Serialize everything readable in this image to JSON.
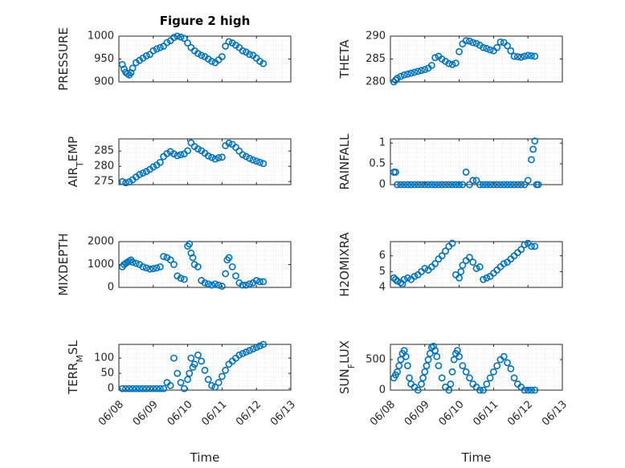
{
  "chart_data": [
    {
      "type": "scatter",
      "title": "Figure 2 high",
      "xlabel": "",
      "ylabel": "PRESSURE",
      "ylim": [
        900,
        1000
      ],
      "yticks": [
        900,
        950,
        1000
      ],
      "xlim": [
        0,
        5
      ],
      "xticks": [
        0,
        1,
        2,
        3,
        4,
        5
      ],
      "xticklabels": [],
      "grid": true,
      "x": [
        0.1,
        0.15,
        0.2,
        0.25,
        0.3,
        0.35,
        0.4,
        0.5,
        0.6,
        0.7,
        0.8,
        0.9,
        1.0,
        1.1,
        1.2,
        1.3,
        1.4,
        1.5,
        1.6,
        1.7,
        1.8,
        1.9,
        2.0,
        2.1,
        2.2,
        2.3,
        2.4,
        2.5,
        2.6,
        2.7,
        2.8,
        2.9,
        3.0,
        3.1,
        3.2,
        3.3,
        3.4,
        3.5,
        3.6,
        3.7,
        3.8,
        3.9,
        4.0,
        4.1,
        4.2
      ],
      "y": [
        938,
        928,
        921,
        918,
        915,
        920,
        930,
        942,
        947,
        952,
        957,
        960,
        968,
        972,
        975,
        978,
        986,
        990,
        997,
        1000,
        998,
        995,
        985,
        975,
        968,
        962,
        958,
        955,
        950,
        945,
        942,
        948,
        955,
        978,
        988,
        985,
        980,
        975,
        968,
        965,
        960,
        958,
        952,
        945,
        940
      ]
    },
    {
      "type": "scatter",
      "title": "",
      "xlabel": "",
      "ylabel": "THETA",
      "ylim": [
        280,
        290
      ],
      "yticks": [
        280,
        285,
        290
      ],
      "xlim": [
        0,
        5
      ],
      "xticks": [
        0,
        1,
        2,
        3,
        4,
        5
      ],
      "xticklabels": [],
      "grid": true,
      "x": [
        0.1,
        0.15,
        0.2,
        0.3,
        0.4,
        0.5,
        0.6,
        0.7,
        0.8,
        0.9,
        1.0,
        1.1,
        1.2,
        1.3,
        1.4,
        1.5,
        1.6,
        1.7,
        1.8,
        1.9,
        2.0,
        2.1,
        2.2,
        2.3,
        2.4,
        2.5,
        2.6,
        2.7,
        2.8,
        2.9,
        3.0,
        3.1,
        3.2,
        3.3,
        3.4,
        3.5,
        3.6,
        3.7,
        3.8,
        3.9,
        4.0,
        4.1,
        4.2
      ],
      "y": [
        280,
        280.4,
        280.8,
        281.2,
        281.5,
        281.7,
        281.9,
        282.1,
        282.3,
        282.5,
        282.7,
        283.0,
        283.6,
        285.3,
        285.6,
        285.0,
        284.5,
        284.0,
        283.8,
        284.1,
        286.6,
        288.3,
        289.0,
        288.9,
        288.6,
        288.4,
        288.0,
        287.5,
        287.3,
        287.0,
        286.8,
        287.5,
        288.7,
        288.6,
        287.9,
        286.8,
        285.6,
        285.5,
        285.4,
        285.6,
        285.8,
        285.7,
        285.6
      ]
    },
    {
      "type": "scatter",
      "title": "",
      "xlabel": "",
      "ylabel": "AIR_TEMP",
      "ylim": [
        274,
        289
      ],
      "yticks": [
        275,
        280,
        285
      ],
      "xlim": [
        0,
        5
      ],
      "xticks": [
        0,
        1,
        2,
        3,
        4,
        5
      ],
      "xticklabels": [],
      "grid": true,
      "x": [
        0.1,
        0.2,
        0.3,
        0.4,
        0.5,
        0.6,
        0.7,
        0.8,
        0.9,
        1.0,
        1.1,
        1.2,
        1.3,
        1.4,
        1.5,
        1.6,
        1.7,
        1.8,
        1.9,
        2.0,
        2.1,
        2.2,
        2.3,
        2.4,
        2.5,
        2.6,
        2.7,
        2.8,
        2.9,
        3.0,
        3.1,
        3.2,
        3.3,
        3.4,
        3.5,
        3.6,
        3.7,
        3.8,
        3.9,
        4.0,
        4.1,
        4.2
      ],
      "y": [
        275,
        274.6,
        274.9,
        275.6,
        276.5,
        277.3,
        277.8,
        278.3,
        279.0,
        279.8,
        280.4,
        281.3,
        283.2,
        284.2,
        284.8,
        284.1,
        283.5,
        283.8,
        284.1,
        285.1,
        287.7,
        286.5,
        285.7,
        285.1,
        284.3,
        283.4,
        282.9,
        282.4,
        282.8,
        283.0,
        286.8,
        287.6,
        287.2,
        286.2,
        285.0,
        283.8,
        283.2,
        282.6,
        282.1,
        281.7,
        281.3,
        280.9
      ]
    },
    {
      "type": "scatter",
      "title": "",
      "xlabel": "",
      "ylabel": "RAINFALL",
      "ylim": [
        0,
        1.1
      ],
      "yticks": [
        0,
        0.5,
        1
      ],
      "xlim": [
        0,
        5
      ],
      "xticks": [
        0,
        1,
        2,
        3,
        4,
        5
      ],
      "xticklabels": [],
      "grid": true,
      "x": [
        0.1,
        0.15,
        0.2,
        0.3,
        0.4,
        0.5,
        0.6,
        0.7,
        0.8,
        0.9,
        1.0,
        1.1,
        1.2,
        1.3,
        1.4,
        1.5,
        1.6,
        1.7,
        1.8,
        1.9,
        2.0,
        2.1,
        2.2,
        2.3,
        2.4,
        2.5,
        2.6,
        2.7,
        2.8,
        2.9,
        3.0,
        3.1,
        3.2,
        3.3,
        3.4,
        3.5,
        3.6,
        3.7,
        3.8,
        3.9,
        4.0,
        4.1,
        4.15,
        4.2,
        4.25,
        4.3
      ],
      "y": [
        0.3,
        0.3,
        0,
        0,
        0,
        0,
        0,
        0,
        0,
        0,
        0,
        0,
        0,
        0,
        0,
        0,
        0,
        0,
        0,
        0,
        0,
        0,
        0.3,
        0,
        0.1,
        0.1,
        0,
        0,
        0,
        0,
        0,
        0,
        0,
        0,
        0,
        0,
        0,
        0,
        0,
        0,
        0.1,
        0.6,
        0.85,
        1.05,
        0,
        0
      ]
    },
    {
      "type": "scatter",
      "title": "",
      "xlabel": "",
      "ylabel": "MIXDEPTH",
      "ylim": [
        0,
        2000
      ],
      "yticks": [
        0,
        1000,
        2000
      ],
      "xlim": [
        0,
        5
      ],
      "xticks": [
        0,
        1,
        2,
        3,
        4,
        5
      ],
      "xticklabels": [],
      "grid": true,
      "x": [
        0.1,
        0.15,
        0.2,
        0.25,
        0.3,
        0.35,
        0.4,
        0.5,
        0.6,
        0.7,
        0.8,
        0.9,
        1.0,
        1.1,
        1.2,
        1.3,
        1.4,
        1.5,
        1.6,
        1.7,
        1.8,
        1.9,
        2.0,
        2.05,
        2.1,
        2.15,
        2.2,
        2.3,
        2.4,
        2.5,
        2.6,
        2.7,
        2.8,
        2.9,
        3.0,
        3.1,
        3.15,
        3.2,
        3.3,
        3.4,
        3.5,
        3.6,
        3.7,
        3.8,
        3.9,
        4.0,
        4.1,
        4.2
      ],
      "y": [
        900,
        1000,
        1050,
        1100,
        1150,
        1200,
        1100,
        1050,
        1000,
        900,
        850,
        800,
        820,
        850,
        900,
        1350,
        1300,
        1200,
        1000,
        500,
        400,
        350,
        1800,
        1900,
        1500,
        1300,
        1000,
        900,
        300,
        200,
        150,
        100,
        150,
        100,
        50,
        600,
        1200,
        1300,
        900,
        500,
        200,
        100,
        100,
        150,
        200,
        300,
        250,
        250
      ]
    },
    {
      "type": "scatter",
      "title": "",
      "xlabel": "",
      "ylabel": "H2OMIXRA",
      "ylim": [
        4,
        6.9
      ],
      "yticks": [
        4,
        5,
        6
      ],
      "xlim": [
        0,
        5
      ],
      "xticks": [
        0,
        1,
        2,
        3,
        4,
        5
      ],
      "xticklabels": [],
      "grid": true,
      "x": [
        0.1,
        0.15,
        0.2,
        0.3,
        0.35,
        0.4,
        0.5,
        0.6,
        0.7,
        0.8,
        0.9,
        1.0,
        1.1,
        1.2,
        1.3,
        1.4,
        1.5,
        1.6,
        1.7,
        1.8,
        1.9,
        2.0,
        2.05,
        2.1,
        2.2,
        2.3,
        2.4,
        2.5,
        2.6,
        2.7,
        2.8,
        2.9,
        3.0,
        3.1,
        3.2,
        3.3,
        3.4,
        3.5,
        3.6,
        3.7,
        3.8,
        3.9,
        4.0,
        4.1,
        4.2
      ],
      "y": [
        4.6,
        4.5,
        4.4,
        4.3,
        4.2,
        4.5,
        4.6,
        4.5,
        4.7,
        4.8,
        5.0,
        5.2,
        5.1,
        5.3,
        5.5,
        5.8,
        6.0,
        6.3,
        6.6,
        6.8,
        4.8,
        4.6,
        5.0,
        5.4,
        5.7,
        5.9,
        5.6,
        5.2,
        5.3,
        4.5,
        4.6,
        4.7,
        4.9,
        5.1,
        5.3,
        5.5,
        5.6,
        5.8,
        6.0,
        6.2,
        6.4,
        6.7,
        6.8,
        6.6,
        6.6
      ]
    },
    {
      "type": "scatter",
      "title": "",
      "xlabel": "Time",
      "ylabel": "TERR_MSL",
      "ylim": [
        -5,
        145
      ],
      "yticks": [
        0,
        50,
        100
      ],
      "xlim": [
        0,
        5
      ],
      "xticks": [
        0,
        1,
        2,
        3,
        4,
        5
      ],
      "xticklabels": [
        "06/08",
        "06/09",
        "06/10",
        "06/11",
        "06/12",
        "06/13"
      ],
      "grid": true,
      "x": [
        0.1,
        0.2,
        0.3,
        0.4,
        0.5,
        0.6,
        0.7,
        0.8,
        0.9,
        1.0,
        1.1,
        1.2,
        1.3,
        1.4,
        1.5,
        1.6,
        1.7,
        1.8,
        1.9,
        2.0,
        2.05,
        2.1,
        2.15,
        2.2,
        2.3,
        2.4,
        2.5,
        2.6,
        2.7,
        2.8,
        2.9,
        3.0,
        3.1,
        3.2,
        3.3,
        3.4,
        3.5,
        3.6,
        3.7,
        3.8,
        3.9,
        4.0,
        4.1,
        4.2
      ],
      "y": [
        0,
        0,
        0,
        0,
        0,
        0,
        0,
        0,
        0,
        0,
        0,
        0,
        0,
        20,
        10,
        100,
        50,
        20,
        0,
        30,
        50,
        100,
        70,
        80,
        110,
        90,
        60,
        30,
        10,
        5,
        20,
        40,
        60,
        80,
        90,
        100,
        110,
        115,
        120,
        125,
        130,
        135,
        140,
        145
      ]
    },
    {
      "type": "scatter",
      "title": "",
      "xlabel": "Time",
      "ylabel": "SUN_FLUX",
      "ylim": [
        0,
        750
      ],
      "yticks": [
        0,
        500
      ],
      "xlim": [
        0,
        5
      ],
      "xticks": [
        0,
        1,
        2,
        3,
        4,
        5
      ],
      "xticklabels": [
        "06/08",
        "06/09",
        "06/10",
        "06/11",
        "06/12",
        "06/13"
      ],
      "grid": true,
      "x": [
        0.1,
        0.15,
        0.2,
        0.25,
        0.3,
        0.35,
        0.4,
        0.45,
        0.5,
        0.55,
        0.6,
        0.7,
        0.8,
        0.9,
        0.95,
        1.0,
        1.05,
        1.1,
        1.15,
        1.2,
        1.25,
        1.3,
        1.35,
        1.4,
        1.5,
        1.6,
        1.7,
        1.75,
        1.8,
        1.85,
        1.9,
        1.95,
        2.0,
        2.1,
        2.2,
        2.3,
        2.4,
        2.5,
        2.6,
        2.7,
        2.8,
        2.9,
        3.0,
        3.1,
        3.2,
        3.3,
        3.4,
        3.5,
        3.6,
        3.7,
        3.8,
        3.9,
        4.0,
        4.1,
        4.2
      ],
      "y": [
        200,
        250,
        300,
        400,
        500,
        600,
        650,
        550,
        400,
        200,
        100,
        50,
        0,
        100,
        200,
        300,
        400,
        500,
        600,
        700,
        720,
        650,
        550,
        400,
        200,
        50,
        0,
        100,
        300,
        500,
        600,
        650,
        550,
        400,
        300,
        200,
        100,
        50,
        0,
        0,
        100,
        200,
        300,
        400,
        500,
        550,
        450,
        350,
        200,
        100,
        50,
        0,
        0,
        0,
        0
      ]
    }
  ],
  "colors": {
    "marker": "#0072bd",
    "axis": "#262626",
    "grid": "#dcdcdc"
  }
}
